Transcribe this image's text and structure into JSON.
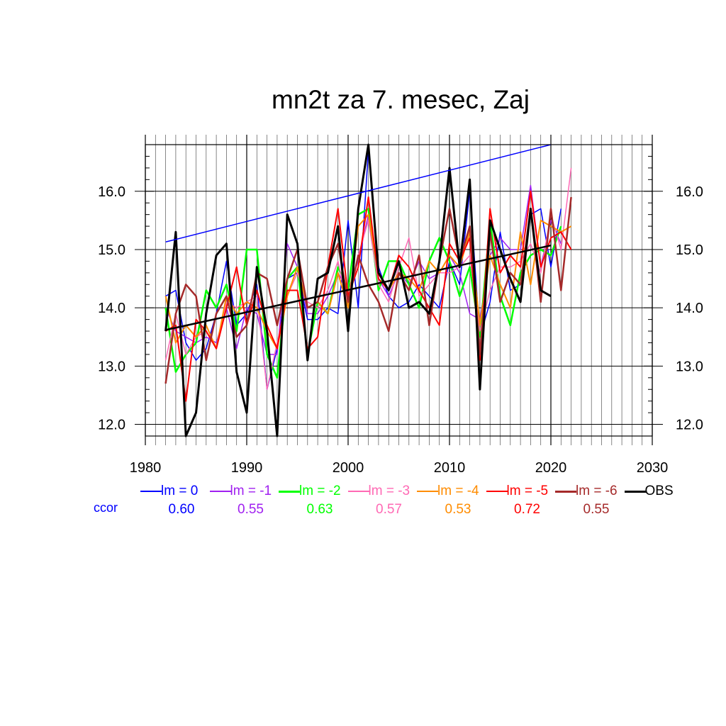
{
  "title": "mn2t za 7. mesec, Zaj",
  "chart_data": {
    "type": "line",
    "title": "mn2t za 7. mesec, Zaj",
    "xlim": [
      1980,
      2030
    ],
    "ylim": [
      11.8,
      16.8
    ],
    "xticks": [
      1980,
      1990,
      2000,
      2010,
      2020,
      2030
    ],
    "xtick_labels": [
      "1980",
      "1990",
      "2000",
      "2010",
      "2020",
      "2030"
    ],
    "yticks": [
      12.0,
      13.0,
      14.0,
      15.0,
      16.0
    ],
    "ytick_labels": [
      "12.0",
      "13.0",
      "14.0",
      "15.0",
      "16.0"
    ],
    "grid": true,
    "legend_position": "bottom",
    "ccor_label": "ccor",
    "x": [
      1982,
      1983,
      1984,
      1985,
      1986,
      1987,
      1988,
      1989,
      1990,
      1991,
      1992,
      1993,
      1994,
      1995,
      1996,
      1997,
      1998,
      1999,
      2000,
      2001,
      2002,
      2003,
      2004,
      2005,
      2006,
      2007,
      2008,
      2009,
      2010,
      2011,
      2012,
      2013,
      2014,
      2015,
      2016,
      2017,
      2018,
      2019,
      2020,
      2021,
      2022
    ],
    "series": [
      {
        "name": "lm = 0",
        "color": "#0000ff",
        "width": 1.5,
        "ccor": "0.60",
        "values": [
          14.2,
          14.3,
          13.4,
          13.1,
          13.3,
          13.9,
          14.8,
          13.7,
          13.9,
          14.4,
          12.6,
          13.3,
          14.5,
          14.6,
          13.8,
          13.8,
          14.0,
          13.9,
          15.5,
          14.0,
          16.7,
          14.7,
          14.2,
          14.0,
          14.1,
          14.4,
          14.2,
          14.0,
          14.8,
          14.4,
          16.0,
          13.5,
          14.1,
          15.3,
          14.3,
          14.4,
          15.6,
          15.7,
          14.7,
          15.7,
          null
        ]
      },
      {
        "name": "lm = -1",
        "color": "#a020f0",
        "width": 1.5,
        "ccor": "0.55",
        "values": [
          14.0,
          13.6,
          13.5,
          13.4,
          13.5,
          13.4,
          14.0,
          13.3,
          14.0,
          13.9,
          13.2,
          13.2,
          15.1,
          14.7,
          13.9,
          13.9,
          14.2,
          14.6,
          14.3,
          14.8,
          15.6,
          14.5,
          14.2,
          14.6,
          14.4,
          14.8,
          14.5,
          14.6,
          14.9,
          14.6,
          13.9,
          13.8,
          14.9,
          15.2,
          15.0,
          15.0,
          16.1,
          14.7,
          15.5,
          15.1,
          null
        ]
      },
      {
        "name": "lm = -2",
        "color": "#00ff00",
        "width": 2.5,
        "ccor": "0.63",
        "values": [
          14.0,
          12.9,
          13.2,
          13.4,
          14.3,
          14.0,
          14.4,
          13.6,
          15.0,
          15.0,
          13.2,
          12.8,
          14.5,
          14.7,
          13.2,
          14.1,
          13.9,
          14.7,
          14.3,
          15.6,
          15.7,
          14.3,
          14.8,
          14.8,
          14.4,
          14.0,
          14.8,
          15.2,
          14.8,
          14.2,
          14.7,
          13.5,
          15.5,
          14.2,
          13.7,
          14.6,
          14.9,
          15.0,
          14.9,
          15.4,
          null
        ]
      },
      {
        "name": "lm = -3",
        "color": "#ff69b4",
        "width": 1.5,
        "ccor": "0.57",
        "values": [
          13.1,
          13.9,
          13.2,
          13.5,
          13.6,
          13.3,
          14.1,
          14.0,
          14.1,
          14.2,
          12.6,
          13.4,
          14.2,
          14.6,
          14.1,
          14.0,
          14.3,
          14.8,
          14.0,
          14.9,
          15.5,
          14.4,
          14.1,
          14.7,
          15.2,
          14.2,
          14.4,
          14.6,
          14.6,
          14.7,
          14.9,
          13.6,
          14.3,
          14.7,
          14.7,
          14.8,
          15.1,
          14.6,
          15.6,
          15.0,
          16.4
        ]
      },
      {
        "name": "lm = -4",
        "color": "#ff8c00",
        "width": 2,
        "ccor": "0.53",
        "values": [
          14.2,
          13.4,
          13.7,
          13.5,
          13.7,
          13.3,
          14.2,
          13.9,
          14.1,
          14.0,
          13.6,
          13.3,
          14.2,
          14.7,
          14.0,
          14.1,
          13.9,
          14.6,
          14.0,
          15.4,
          15.6,
          14.6,
          14.3,
          14.6,
          14.5,
          14.3,
          14.8,
          14.6,
          14.9,
          14.7,
          15.3,
          13.7,
          14.9,
          14.4,
          14.0,
          15.3,
          14.4,
          15.5,
          15.4,
          15.3,
          15.4
        ]
      },
      {
        "name": "lm = -5",
        "color": "#ff0000",
        "width": 2,
        "ccor": "0.72",
        "values": [
          13.6,
          13.7,
          12.4,
          13.8,
          13.6,
          13.3,
          14.0,
          14.7,
          13.7,
          14.3,
          13.7,
          13.3,
          14.3,
          14.3,
          13.3,
          13.5,
          14.7,
          15.7,
          14.2,
          14.7,
          15.9,
          14.5,
          14.3,
          14.9,
          14.7,
          14.3,
          14.0,
          13.7,
          15.1,
          14.8,
          15.2,
          13.1,
          15.7,
          14.6,
          14.9,
          14.7,
          16.0,
          14.7,
          15.2,
          15.3,
          15.0
        ]
      },
      {
        "name": "lm = -6",
        "color": "#a52a2a",
        "width": 2.5,
        "ccor": "0.55",
        "values": [
          12.7,
          13.9,
          14.4,
          14.2,
          13.1,
          13.9,
          14.2,
          13.5,
          13.7,
          14.6,
          14.5,
          13.7,
          14.5,
          15.0,
          14.0,
          14.1,
          14.7,
          15.1,
          14.1,
          14.9,
          14.4,
          14.1,
          13.6,
          14.6,
          14.3,
          14.9,
          13.7,
          14.8,
          15.7,
          14.8,
          15.4,
          13.2,
          15.3,
          14.1,
          14.6,
          14.4,
          15.7,
          14.1,
          15.7,
          14.3,
          15.9
        ]
      },
      {
        "name": "OBS",
        "color": "#000000",
        "width": 3,
        "ccor": "",
        "values": [
          13.6,
          15.3,
          11.8,
          12.2,
          13.9,
          14.9,
          15.1,
          12.9,
          12.2,
          14.7,
          13.6,
          11.8,
          15.6,
          15.1,
          13.1,
          14.5,
          14.6,
          15.4,
          13.6,
          15.7,
          16.8,
          14.6,
          14.3,
          14.8,
          14.0,
          14.1,
          13.9,
          14.8,
          16.4,
          14.7,
          16.2,
          12.6,
          15.5,
          15.0,
          14.5,
          14.1,
          15.7,
          14.3,
          14.2,
          null,
          null
        ]
      }
    ],
    "trend_lines": [
      {
        "name": "lm = 0 trend",
        "color": "#0000ff",
        "width": 1.5,
        "x": [
          1982,
          2020
        ],
        "y": [
          15.13,
          16.8
        ]
      },
      {
        "name": "OBS trend",
        "color": "#000000",
        "width": 2.5,
        "x": [
          1982,
          2020
        ],
        "y": [
          13.62,
          15.07
        ]
      }
    ]
  }
}
